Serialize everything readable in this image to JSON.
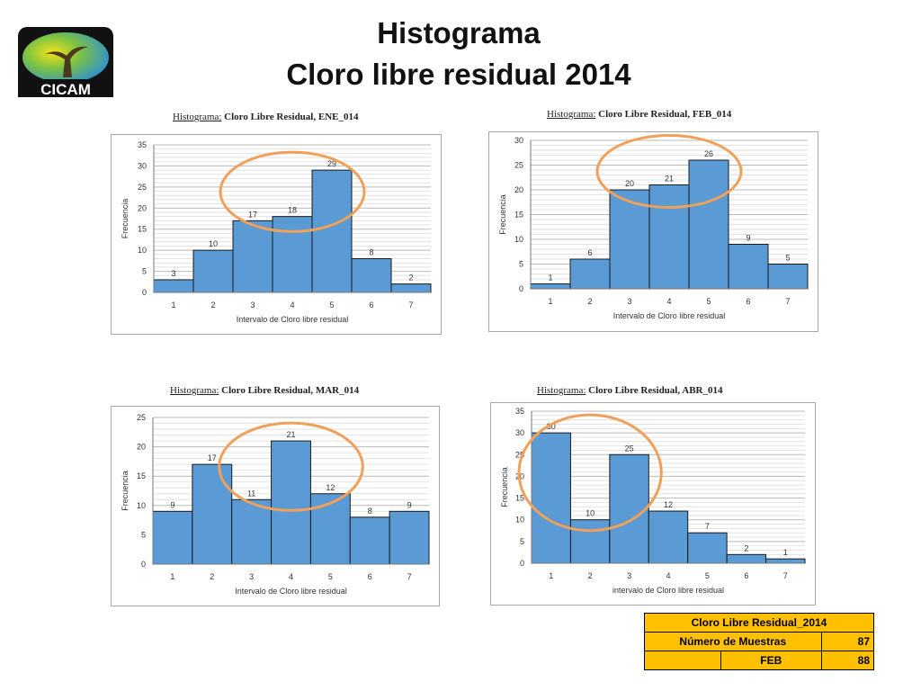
{
  "slide": {
    "title_line1": "Histograma",
    "title_line2": "Cloro libre residual 2014",
    "logo_text": "CICAM"
  },
  "chart_data": [
    {
      "type": "bar",
      "title_prefix": "Histograma:",
      "title": "Cloro Libre Residual, ENE_014",
      "categories": [
        "1",
        "2",
        "3",
        "4",
        "5",
        "6",
        "7"
      ],
      "values": [
        3,
        10,
        17,
        18,
        29,
        8,
        2
      ],
      "xlabel": "Intervalo de Cloro libre residual",
      "ylabel": "Frecuencia",
      "ylim": [
        0,
        35
      ],
      "yticks": [
        0,
        5,
        10,
        15,
        20,
        25,
        30,
        35
      ],
      "grid": true,
      "bar_color": "#5b9bd5",
      "highlight_color": "#f0a058"
    },
    {
      "type": "bar",
      "title_prefix": "Histograma:",
      "title": "Cloro Libre Residual, FEB_014",
      "categories": [
        "1",
        "2",
        "3",
        "4",
        "5",
        "6",
        "7"
      ],
      "values": [
        1,
        6,
        20,
        21,
        26,
        9,
        5
      ],
      "xlabel": "Intervalo de Cloro libre residual",
      "ylabel": "Frecuencia",
      "ylim": [
        0,
        30
      ],
      "yticks": [
        0,
        5,
        10,
        15,
        20,
        25,
        30
      ],
      "grid": true,
      "bar_color": "#5b9bd5",
      "highlight_color": "#f0a058"
    },
    {
      "type": "bar",
      "title_prefix": "Histograma:",
      "title": "Cloro Libre Residual, MAR_014",
      "categories": [
        "1",
        "2",
        "3",
        "4",
        "5",
        "6",
        "7"
      ],
      "values": [
        9,
        17,
        11,
        21,
        12,
        8,
        9
      ],
      "xlabel": "Intervalo de Cloro libre residual",
      "ylabel": "Frecuencia",
      "ylim": [
        0,
        25
      ],
      "yticks": [
        0,
        5,
        10,
        15,
        20,
        25
      ],
      "grid": true,
      "bar_color": "#5b9bd5",
      "highlight_color": "#f0a058"
    },
    {
      "type": "bar",
      "title_prefix": "Histograma:",
      "title": "Cloro Libre Residual, ABR_014",
      "categories": [
        "1",
        "2",
        "3",
        "4",
        "5",
        "6",
        "7"
      ],
      "values": [
        30,
        10,
        25,
        12,
        7,
        2,
        1
      ],
      "xlabel": "intervalo de Cloro libre residual",
      "ylabel": "Frecuencia",
      "ylim": [
        0,
        35
      ],
      "yticks": [
        0,
        5,
        10,
        15,
        20,
        25,
        30,
        35
      ],
      "grid": true,
      "bar_color": "#5b9bd5",
      "highlight_color": "#f0a058"
    }
  ],
  "summary_table": {
    "header": "Cloro Libre Residual_2014",
    "row1_label": "Número de Muestras",
    "row1_value": "87",
    "row2_label": "FEB",
    "row2_value": "88"
  }
}
